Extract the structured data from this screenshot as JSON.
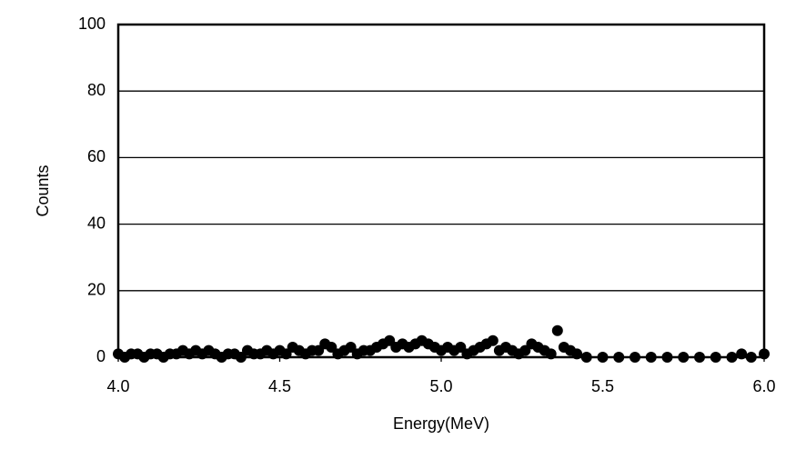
{
  "chart_data": {
    "type": "scatter",
    "x_label": "Energy(MeV)",
    "y_label": "Counts",
    "xlim": [
      4,
      6
    ],
    "ylim": [
      0,
      100
    ],
    "xticks": [
      {
        "value": 4,
        "label": "4.0"
      },
      4.5,
      {
        "value": 5,
        "label": "5.0"
      },
      5.5,
      {
        "value": 6,
        "label": "6.0"
      }
    ],
    "yticks": [
      0,
      20,
      40,
      60,
      80,
      100
    ],
    "grid": true,
    "series": [
      {
        "color": "#000000",
        "x": [
          4.0,
          4.02,
          4.04,
          4.06,
          4.08,
          4.1,
          4.12,
          4.14,
          4.16,
          4.18,
          4.2,
          4.22,
          4.24,
          4.26,
          4.28,
          4.3,
          4.32,
          4.34,
          4.36,
          4.38,
          4.4,
          4.42,
          4.44,
          4.46,
          4.48,
          4.5,
          4.52,
          4.54,
          4.56,
          4.58,
          4.6,
          4.62,
          4.64,
          4.66,
          4.68,
          4.7,
          4.72,
          4.74,
          4.76,
          4.78,
          4.8,
          4.82,
          4.84,
          4.86,
          4.88,
          4.9,
          4.92,
          4.94,
          4.96,
          4.98,
          5.0,
          5.02,
          5.04,
          5.06,
          5.08,
          5.1,
          5.12,
          5.14,
          5.16,
          5.18,
          5.2,
          5.22,
          5.24,
          5.26,
          5.28,
          5.3,
          5.32,
          5.34,
          5.36,
          5.38,
          5.4,
          5.42,
          5.45,
          5.5,
          5.55,
          5.6,
          5.65,
          5.7,
          5.75,
          5.8,
          5.85,
          5.9,
          5.93,
          5.96,
          6.0
        ],
        "values": [
          1,
          0,
          1,
          1,
          0,
          1,
          1,
          0,
          1,
          1,
          2,
          1,
          2,
          1,
          2,
          1,
          0,
          1,
          1,
          0,
          2,
          1,
          1,
          2,
          1,
          2,
          1,
          3,
          2,
          1,
          2,
          2,
          4,
          3,
          1,
          2,
          3,
          1,
          2,
          2,
          3,
          4,
          5,
          3,
          4,
          3,
          4,
          5,
          4,
          3,
          2,
          3,
          2,
          3,
          1,
          2,
          3,
          4,
          5,
          2,
          3,
          2,
          1,
          2,
          4,
          3,
          2,
          1,
          8,
          3,
          2,
          1,
          0,
          0,
          0,
          0,
          0,
          0,
          0,
          0,
          0,
          0,
          1,
          0,
          1
        ]
      }
    ]
  }
}
